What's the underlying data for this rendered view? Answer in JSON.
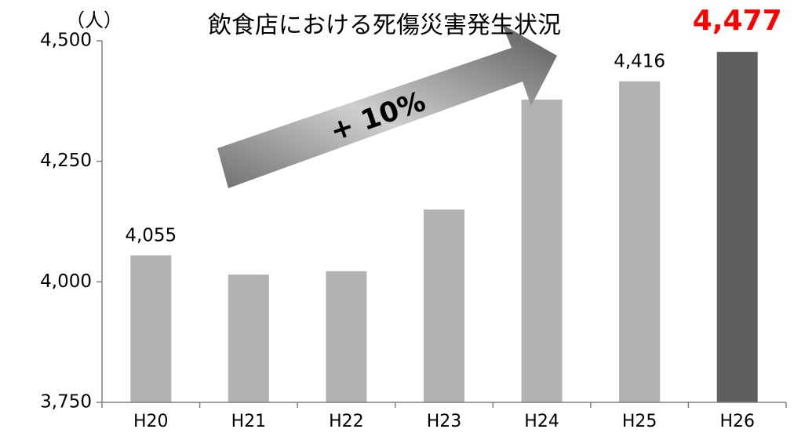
{
  "chart_data": {
    "type": "bar",
    "title": "飲食店における死傷災害発生状況",
    "unit_label": "（人）",
    "categories": [
      "H20",
      "H21",
      "H22",
      "H23",
      "H24",
      "H25",
      "H26"
    ],
    "values": [
      4055,
      4015,
      4022,
      4150,
      4378,
      4416,
      4477
    ],
    "data_labels": [
      {
        "index": 0,
        "text": "4,055"
      },
      {
        "index": 5,
        "text": "4,416"
      }
    ],
    "highlight": {
      "index": 6,
      "text": "4,477",
      "color": "#ff0000"
    },
    "annotation": "+ 10%",
    "ylim": [
      3750,
      4500
    ],
    "yticks": [
      3750,
      4000,
      4250,
      4500
    ],
    "ytick_labels": [
      "3,750",
      "4,000",
      "4,250",
      "4,500"
    ],
    "grid": false,
    "colors": {
      "bar": "#b2b2b2",
      "highlight_bar": "#5f5f5f",
      "axis": "#7f7f7f",
      "text": "#000000"
    }
  }
}
